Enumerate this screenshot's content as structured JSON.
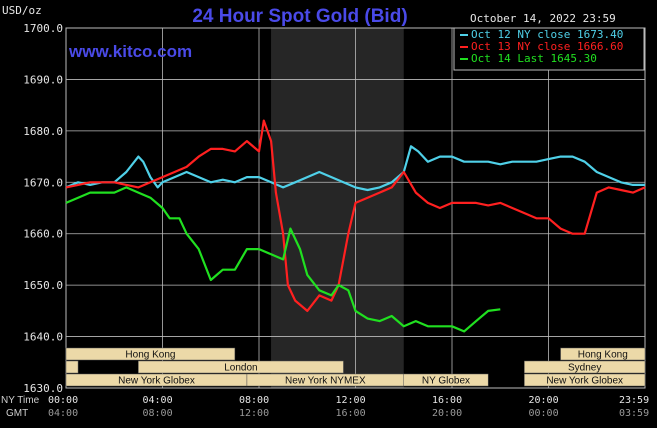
{
  "chart_data": {
    "type": "line",
    "title": "24 Hour Spot Gold (Bid)",
    "watermark": "www.kitco.com",
    "ylabel": "USD/oz",
    "date_label": "October 14, 2022 23:59",
    "ylim": [
      1630,
      1700
    ],
    "yticks": [
      "1700.0",
      "1690.0",
      "1680.0",
      "1670.0",
      "1660.0",
      "1650.0",
      "1640.0",
      "1630.0"
    ],
    "xlim": [
      0,
      24
    ],
    "x_ticks_ny": [
      "00:00",
      "04:00",
      "08:00",
      "12:00",
      "16:00",
      "20:00",
      "23:59"
    ],
    "x_ticks_gmt": [
      "04:00",
      "08:00",
      "12:00",
      "16:00",
      "20:00",
      "00:00",
      "03:59"
    ],
    "side_labels": {
      "ny": "NY Time",
      "gmt": "GMT"
    },
    "shaded_region_hours": [
      8.5,
      14.0
    ],
    "background": "#000000",
    "series": [
      {
        "name": "Oct 12 NY close 1673.40",
        "color": "#4fd0e8",
        "x": [
          0,
          0.5,
          1,
          1.5,
          2,
          2.5,
          3,
          3.2,
          3.5,
          3.8,
          4,
          4.5,
          5,
          5.5,
          6,
          6.5,
          7,
          7.5,
          8,
          8.5,
          9,
          9.5,
          10,
          10.5,
          11,
          11.5,
          12,
          12.5,
          13,
          13.5,
          14,
          14.3,
          14.6,
          15,
          15.5,
          16,
          16.5,
          17,
          17.5,
          18,
          18.5,
          19,
          19.5,
          20,
          20.5,
          21,
          21.5,
          22,
          22.5,
          23,
          23.5,
          24
        ],
        "y": [
          1669,
          1670,
          1669.5,
          1670,
          1670,
          1672,
          1675,
          1674,
          1671,
          1669,
          1670,
          1671,
          1672,
          1671,
          1670,
          1670.5,
          1670,
          1671,
          1671,
          1670,
          1669,
          1670,
          1671,
          1672,
          1671,
          1670,
          1669,
          1668.5,
          1669,
          1670,
          1672,
          1677,
          1676,
          1674,
          1675,
          1675,
          1674,
          1674,
          1674,
          1673.5,
          1674,
          1674,
          1674,
          1674.5,
          1675,
          1675,
          1674,
          1672,
          1671,
          1670,
          1669.5,
          1669.5
        ]
      },
      {
        "name": "Oct 13 NY close 1666.60",
        "color": "#ff2020",
        "x": [
          0,
          0.5,
          1,
          1.5,
          2,
          2.5,
          3,
          3.5,
          4,
          4.5,
          5,
          5.5,
          6,
          6.5,
          7,
          7.5,
          8,
          8.2,
          8.5,
          8.7,
          9,
          9.2,
          9.5,
          10,
          10.5,
          11,
          11.3,
          11.7,
          12,
          12.5,
          13,
          13.5,
          14,
          14.5,
          15,
          15.5,
          16,
          16.5,
          17,
          17.5,
          18,
          18.5,
          19,
          19.5,
          20,
          20.5,
          21,
          21.5,
          22,
          22.5,
          23,
          23.5,
          24
        ],
        "y": [
          1669,
          1669.5,
          1670,
          1670,
          1670,
          1669.5,
          1669,
          1670,
          1671,
          1672,
          1673,
          1675,
          1676.5,
          1676.5,
          1676,
          1678,
          1676,
          1682,
          1678,
          1668,
          1660,
          1650,
          1647,
          1645,
          1648,
          1647,
          1650,
          1660,
          1666,
          1667,
          1668,
          1669,
          1672,
          1668,
          1666,
          1665,
          1666,
          1666,
          1666,
          1665.5,
          1666,
          1665,
          1664,
          1663,
          1663,
          1661,
          1660,
          1660,
          1668,
          1669,
          1668.5,
          1668,
          1669
        ]
      },
      {
        "name": "Oct 14 Last 1645.30",
        "color": "#20e020",
        "x": [
          0,
          0.5,
          1,
          1.5,
          2,
          2.5,
          3,
          3.5,
          4,
          4.3,
          4.7,
          5,
          5.5,
          6,
          6.5,
          7,
          7.5,
          8,
          8.5,
          9,
          9.3,
          9.7,
          10,
          10.5,
          11,
          11.3,
          11.7,
          12,
          12.5,
          13,
          13.5,
          14,
          14.5,
          15,
          15.5,
          16,
          16.5,
          17,
          17.5,
          18
        ],
        "y": [
          1666,
          1667,
          1668,
          1668,
          1668,
          1669,
          1668,
          1667,
          1665,
          1663,
          1663,
          1660,
          1657,
          1651,
          1653,
          1653,
          1657,
          1657,
          1656,
          1655,
          1661,
          1657,
          1652,
          1649,
          1648,
          1650,
          1649,
          1645,
          1643.5,
          1643,
          1644,
          1642,
          1643,
          1642,
          1642,
          1642,
          1641,
          1643,
          1645,
          1645.3
        ]
      }
    ],
    "market_bars": [
      {
        "label": "Hong Kong",
        "start": 0,
        "end": 7,
        "row": 0
      },
      {
        "label": "Hong Kong",
        "start": 20.5,
        "end": 24,
        "row": 0
      },
      {
        "label": "London",
        "start": 3.0,
        "end": 11.5,
        "row": 1
      },
      {
        "label": "Sydney",
        "start": 19.0,
        "end": 24,
        "row": 1
      },
      {
        "label": "",
        "start": 0,
        "end": 0.5,
        "row": 1
      },
      {
        "label": "New York Globex",
        "start": 0,
        "end": 7.5,
        "row": 2
      },
      {
        "label": "New York NYMEX",
        "start": 7.5,
        "end": 14.0,
        "row": 2
      },
      {
        "label": "NY Globex",
        "start": 14.0,
        "end": 17.5,
        "row": 2
      },
      {
        "label": "New York Globex",
        "start": 19.0,
        "end": 24,
        "row": 2
      }
    ]
  }
}
